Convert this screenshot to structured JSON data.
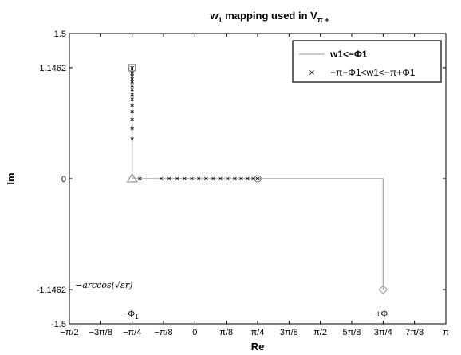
{
  "chart_data": {
    "type": "line",
    "title": "w",
    "title_sub": "1",
    "title_rest": " mapping used in V",
    "title_sub2": "π +",
    "xlabel": "Re",
    "ylabel": "Im",
    "xlim": [
      -1.5708,
      3.1416
    ],
    "ylim": [
      -1.5,
      1.5
    ],
    "x_ticks": [
      {
        "value": -1.5708,
        "label": "−π/2"
      },
      {
        "value": -1.1781,
        "label": "−3π/8"
      },
      {
        "value": -0.7854,
        "label": "−π/4"
      },
      {
        "value": -0.3927,
        "label": "−π/8"
      },
      {
        "value": 0,
        "label": "0"
      },
      {
        "value": 0.3927,
        "label": "π/8"
      },
      {
        "value": 0.7854,
        "label": "π/4"
      },
      {
        "value": 1.1781,
        "label": "3π/8"
      },
      {
        "value": 1.5708,
        "label": "π/2"
      },
      {
        "value": 1.9635,
        "label": "5π/8"
      },
      {
        "value": 2.3562,
        "label": "3π/4"
      },
      {
        "value": 2.7489,
        "label": "7π/8"
      },
      {
        "value": 3.1416,
        "label": "π"
      }
    ],
    "y_ticks": [
      {
        "value": 1.5,
        "label": "1.5"
      },
      {
        "value": 1.1462,
        "label": "1.1462"
      },
      {
        "value": 0,
        "label": "0"
      },
      {
        "value": -1.1462,
        "label": "-1.1462"
      },
      {
        "value": -1.5,
        "label": "-1.5"
      }
    ],
    "grid": false,
    "legend_position": "top-right",
    "legend": [
      {
        "label": "w1<−Φ1",
        "style": "line",
        "color": "#aaaaaa"
      },
      {
        "label": "−π−Φ1<w1<−π+Φ1",
        "style": "x-marker",
        "color": "#000000"
      }
    ],
    "series": [
      {
        "style": "line",
        "color": "#aaaaaa",
        "points": [
          [
            -0.7854,
            1.1462
          ],
          [
            -0.7854,
            0
          ],
          [
            2.3562,
            0
          ],
          [
            2.3562,
            -1.1462
          ]
        ]
      },
      {
        "style": "x-marker",
        "color": "#000000",
        "points": [
          [
            -0.7854,
            1.1462
          ],
          [
            -0.7854,
            1.12
          ],
          [
            -0.7854,
            1.09
          ],
          [
            -0.7854,
            1.06
          ],
          [
            -0.7854,
            1.03
          ],
          [
            -0.7854,
            1.0
          ],
          [
            -0.7854,
            0.96
          ],
          [
            -0.7854,
            0.92
          ],
          [
            -0.7854,
            0.87
          ],
          [
            -0.7854,
            0.82
          ],
          [
            -0.7854,
            0.76
          ],
          [
            -0.7854,
            0.69
          ],
          [
            -0.7854,
            0.61
          ],
          [
            -0.7854,
            0.52
          ],
          [
            -0.7854,
            0.41
          ],
          [
            -0.69,
            0
          ],
          [
            -0.425,
            0
          ],
          [
            -0.32,
            0
          ],
          [
            -0.22,
            0
          ],
          [
            -0.13,
            0
          ],
          [
            -0.04,
            0
          ],
          [
            0.05,
            0
          ],
          [
            0.14,
            0
          ],
          [
            0.23,
            0
          ],
          [
            0.32,
            0
          ],
          [
            0.41,
            0
          ],
          [
            0.5,
            0
          ],
          [
            0.58,
            0
          ],
          [
            0.66,
            0
          ],
          [
            0.73,
            0
          ],
          [
            0.7854,
            0
          ]
        ]
      }
    ],
    "special_markers": [
      {
        "x": -0.7854,
        "y": 1.1462,
        "shape": "square",
        "color": "#888888"
      },
      {
        "x": -0.7854,
        "y": 0,
        "shape": "triangle",
        "color": "#999999"
      },
      {
        "x": 0.7854,
        "y": 0,
        "shape": "circle",
        "color": "#888888"
      },
      {
        "x": 2.3562,
        "y": -1.1462,
        "shape": "diamond",
        "color": "#aaaaaa"
      }
    ],
    "annotations": {
      "arccos_label": "−arccos(√εr)",
      "neg_phi_label": "−Φ",
      "neg_phi_sub": "1",
      "pos_phi_label": "+Φ"
    }
  }
}
